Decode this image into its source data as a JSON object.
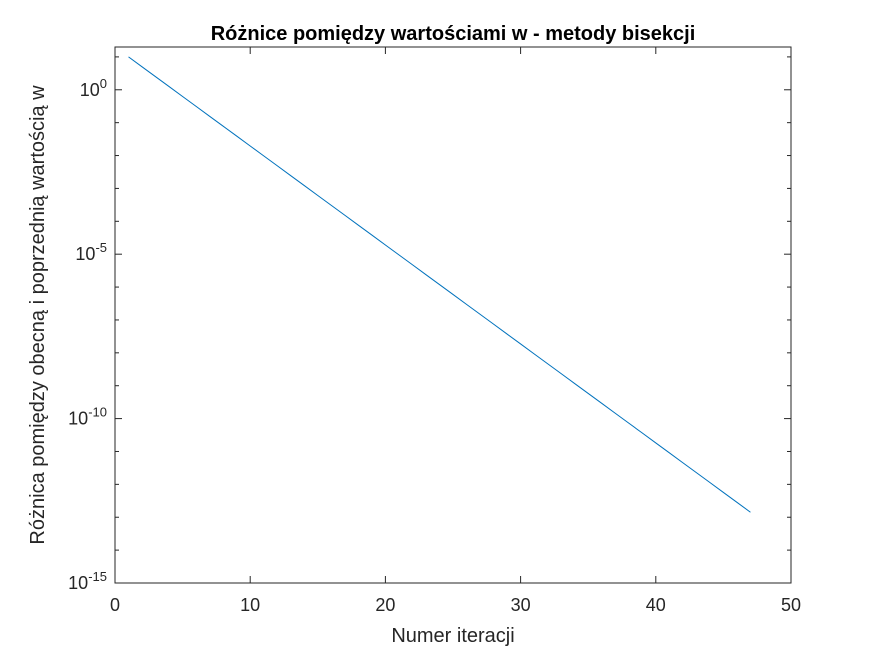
{
  "chart_data": {
    "type": "line",
    "title": "Różnice pomiędzy wartościami w - metody bisekcji",
    "xlabel": "Numer iteracji",
    "ylabel": "Różnica pomiędzy obecną i poprzednią wartością w",
    "x_scale": "linear",
    "y_scale": "log",
    "xlim": [
      0,
      50
    ],
    "ylim": [
      1e-15,
      20
    ],
    "xticks": [
      0,
      10,
      20,
      30,
      40,
      50
    ],
    "xtick_labels": [
      "0",
      "10",
      "20",
      "30",
      "40",
      "50"
    ],
    "yticks": [
      {
        "value": 1,
        "base": "10",
        "exp": "0"
      },
      {
        "value": 1e-05,
        "base": "10",
        "exp": "-5"
      },
      {
        "value": 1e-10,
        "base": "10",
        "exp": "-10"
      },
      {
        "value": 1e-15,
        "base": "10",
        "exp": "-15"
      }
    ],
    "grid": false,
    "box": true,
    "series": [
      {
        "color": "#0072BD",
        "x_start": 1,
        "x_end": 47,
        "y_start": 10,
        "ratio": 0.5
      }
    ]
  }
}
